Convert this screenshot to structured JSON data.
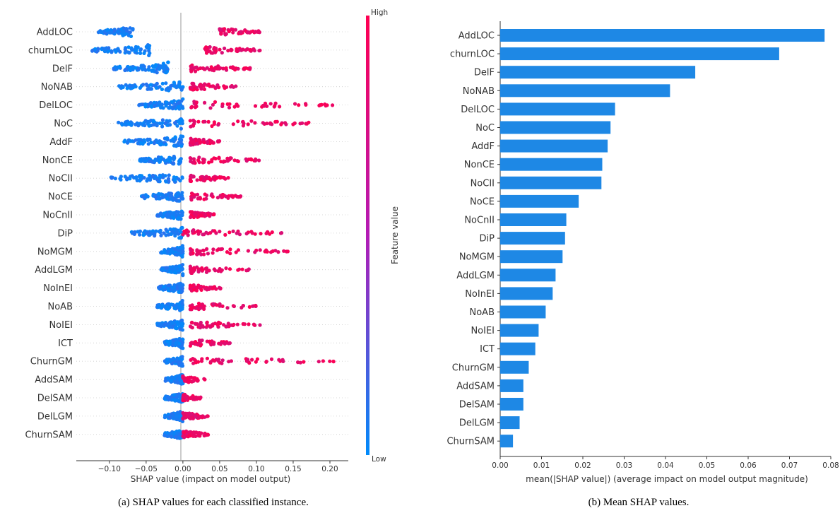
{
  "chart_data": [
    {
      "type": "scatter",
      "caption": "(a) SHAP values for each classified instance.",
      "xlabel": "SHAP value (impact on model output)",
      "xlim": [
        -0.145,
        0.225
      ],
      "xticks": [
        "-0.10",
        "-0.05",
        "0.00",
        "0.05",
        "0.10",
        "0.15",
        "0.20"
      ],
      "xtick_values": [
        -0.1,
        -0.05,
        0.0,
        0.05,
        0.1,
        0.15,
        0.2
      ],
      "colorbar": {
        "label": "Feature value",
        "high": "High",
        "low": "Low",
        "high_color": "#ff0052",
        "low_color": "#008bfb"
      },
      "features": [
        {
          "name": "AddLOC",
          "low": [
            -0.115,
            -0.068
          ],
          "high": [
            0.05,
            0.105
          ]
        },
        {
          "name": "churnLOC",
          "low": [
            -0.125,
            -0.045
          ],
          "high": [
            0.03,
            0.105
          ]
        },
        {
          "name": "DelF",
          "low": [
            -0.1,
            -0.02
          ],
          "high": [
            0.01,
            0.095
          ]
        },
        {
          "name": "NoNAB",
          "low": [
            -0.09,
            0.0
          ],
          "high": [
            0.01,
            0.072
          ]
        },
        {
          "name": "DelLOC",
          "low": [
            -0.06,
            0.0
          ],
          "high": [
            0.01,
            0.205
          ]
        },
        {
          "name": "NoC",
          "low": [
            -0.09,
            0.0
          ],
          "high": [
            0.01,
            0.2
          ]
        },
        {
          "name": "AddF",
          "low": [
            -0.08,
            0.0
          ],
          "high": [
            0.01,
            0.05
          ]
        },
        {
          "name": "NonCE",
          "low": [
            -0.06,
            0.0
          ],
          "high": [
            0.01,
            0.105
          ]
        },
        {
          "name": "NoCII",
          "low": [
            -0.1,
            0.0
          ],
          "high": [
            0.01,
            0.062
          ]
        },
        {
          "name": "NoCE",
          "low": [
            -0.06,
            0.0
          ],
          "high": [
            0.01,
            0.083
          ]
        },
        {
          "name": "NoCnII",
          "low": [
            -0.035,
            0.0
          ],
          "high": [
            0.01,
            0.045
          ]
        },
        {
          "name": "DiP",
          "low": [
            -0.07,
            0.0
          ],
          "high": [
            0.0,
            0.135
          ]
        },
        {
          "name": "NoMGM",
          "low": [
            -0.03,
            0.0
          ],
          "high": [
            0.01,
            0.15
          ]
        },
        {
          "name": "AddLGM",
          "low": [
            -0.03,
            0.0
          ],
          "high": [
            0.01,
            0.09
          ]
        },
        {
          "name": "NoInEI",
          "low": [
            -0.035,
            0.0
          ],
          "high": [
            0.01,
            0.052
          ]
        },
        {
          "name": "NoAB",
          "low": [
            -0.035,
            0.0
          ],
          "high": [
            0.01,
            0.102
          ]
        },
        {
          "name": "NoIEI",
          "low": [
            -0.035,
            0.0
          ],
          "high": [
            0.01,
            0.11
          ]
        },
        {
          "name": "ICT",
          "low": [
            -0.025,
            0.0
          ],
          "high": [
            0.01,
            0.065
          ]
        },
        {
          "name": "ChurnGM",
          "low": [
            -0.025,
            0.0
          ],
          "high": [
            0.01,
            0.21
          ]
        },
        {
          "name": "AddSAM",
          "low": [
            -0.025,
            0.0
          ],
          "high": [
            0.0,
            0.03
          ]
        },
        {
          "name": "DelSAM",
          "low": [
            -0.025,
            0.0
          ],
          "high": [
            0.0,
            0.025
          ]
        },
        {
          "name": "DelLGM",
          "low": [
            -0.025,
            0.0
          ],
          "high": [
            0.0,
            0.035
          ]
        },
        {
          "name": "ChurnSAM",
          "low": [
            -0.025,
            0.0
          ],
          "high": [
            0.0,
            0.035
          ]
        }
      ]
    },
    {
      "type": "bar",
      "orientation": "horizontal",
      "caption": "(b) Mean SHAP values.",
      "xlabel": "mean(|SHAP value|) (average impact on model output magnitude)",
      "xlim": [
        0,
        0.08
      ],
      "xticks": [
        "0.00",
        "0.01",
        "0.02",
        "0.03",
        "0.04",
        "0.05",
        "0.06",
        "0.07",
        "0.08"
      ],
      "xtick_values": [
        0,
        0.01,
        0.02,
        0.03,
        0.04,
        0.05,
        0.06,
        0.07,
        0.08
      ],
      "bar_color": "#1e88e5",
      "categories": [
        "AddLOC",
        "churnLOC",
        "DelF",
        "NoNAB",
        "DelLOC",
        "NoC",
        "AddF",
        "NonCE",
        "NoCII",
        "NoCE",
        "NoCnII",
        "DiP",
        "NoMGM",
        "AddLGM",
        "NoInEI",
        "NoAB",
        "NoIEI",
        "ICT",
        "ChurnGM",
        "AddSAM",
        "DelSAM",
        "DelLGM",
        "ChurnSAM"
      ],
      "values": [
        0.0785,
        0.0675,
        0.0472,
        0.0411,
        0.0278,
        0.0267,
        0.026,
        0.0247,
        0.0245,
        0.019,
        0.016,
        0.0157,
        0.0151,
        0.0134,
        0.0127,
        0.011,
        0.0093,
        0.0085,
        0.0069,
        0.0056,
        0.0056,
        0.0047,
        0.0031
      ]
    }
  ]
}
